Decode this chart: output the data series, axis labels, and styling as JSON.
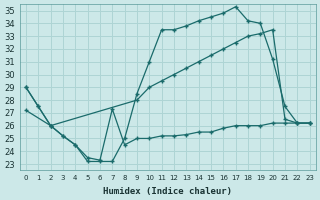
{
  "xlabel": "Humidex (Indice chaleur)",
  "bg_color": "#cce8e8",
  "grid_color": "#aed4d4",
  "line_color": "#1a6b6b",
  "xlim": [
    -0.5,
    23.5
  ],
  "ylim": [
    22.5,
    35.5
  ],
  "xticks": [
    0,
    1,
    2,
    3,
    4,
    5,
    6,
    7,
    8,
    9,
    10,
    11,
    12,
    13,
    14,
    15,
    16,
    17,
    18,
    19,
    20,
    21,
    22,
    23
  ],
  "yticks": [
    23,
    24,
    25,
    26,
    27,
    28,
    29,
    30,
    31,
    32,
    33,
    34,
    35
  ],
  "line1_x": [
    0,
    1,
    2,
    3,
    4,
    5,
    6,
    7,
    8,
    9,
    10,
    11,
    12,
    13,
    14,
    15,
    16,
    17,
    18,
    19,
    20,
    21,
    22,
    23
  ],
  "line1_y": [
    29.0,
    27.5,
    26.0,
    25.2,
    24.5,
    23.2,
    23.2,
    23.2,
    25.0,
    28.5,
    31.0,
    33.5,
    33.5,
    33.8,
    34.2,
    34.5,
    34.8,
    35.3,
    34.2,
    34.0,
    31.2,
    27.5,
    26.2,
    26.2
  ],
  "line2_x": [
    0,
    2,
    9,
    10,
    11,
    12,
    13,
    14,
    15,
    16,
    17,
    18,
    19,
    20,
    21,
    22,
    23
  ],
  "line2_y": [
    27.2,
    26.0,
    28.0,
    29.0,
    29.5,
    30.0,
    30.5,
    31.0,
    31.5,
    32.0,
    32.5,
    33.0,
    33.2,
    33.5,
    26.5,
    26.2,
    26.2
  ],
  "line3_x": [
    0,
    1,
    2,
    3,
    4,
    5,
    6,
    7,
    8,
    9,
    10,
    11,
    12,
    13,
    14,
    15,
    16,
    17,
    18,
    19,
    20,
    21,
    22,
    23
  ],
  "line3_y": [
    29.0,
    27.5,
    26.0,
    25.2,
    24.5,
    23.5,
    23.3,
    27.3,
    24.5,
    25.0,
    25.0,
    25.2,
    25.2,
    25.3,
    25.5,
    25.5,
    25.8,
    26.0,
    26.0,
    26.0,
    26.2,
    26.2,
    26.2,
    26.2
  ]
}
